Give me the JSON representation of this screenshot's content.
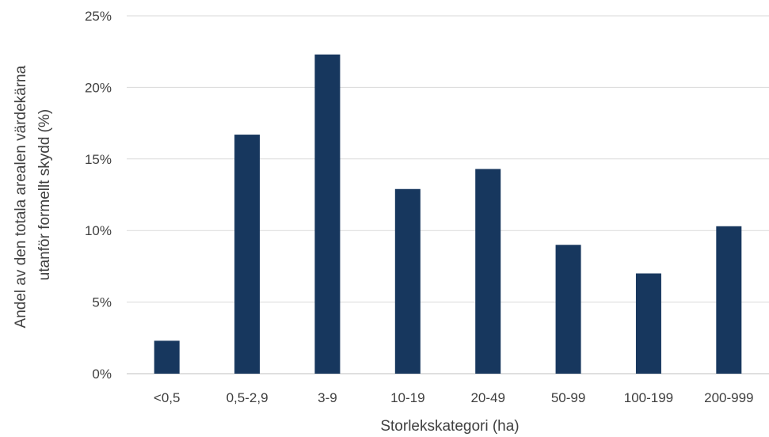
{
  "chart_data": {
    "type": "bar",
    "categories": [
      "<0,5",
      "0,5-2,9",
      "3-9",
      "10-19",
      "20-49",
      "50-99",
      "100-199",
      "200-999"
    ],
    "series": [
      {
        "values": [
          2.3,
          16.7,
          22.3,
          12.9,
          14.3,
          9.0,
          7.0,
          10.3
        ]
      }
    ],
    "xlabel": "Storlekskategori (ha)",
    "ylabel_line1": "Andel av den totala arealen värdekärna",
    "ylabel_line2": "utanför formellt skydd (%)",
    "ylim": [
      0,
      25
    ],
    "yticks": [
      0,
      5,
      10,
      15,
      20,
      25
    ],
    "ytick_suffix": "%",
    "grid": true,
    "legend": "none",
    "bar_color": "#17375e"
  }
}
